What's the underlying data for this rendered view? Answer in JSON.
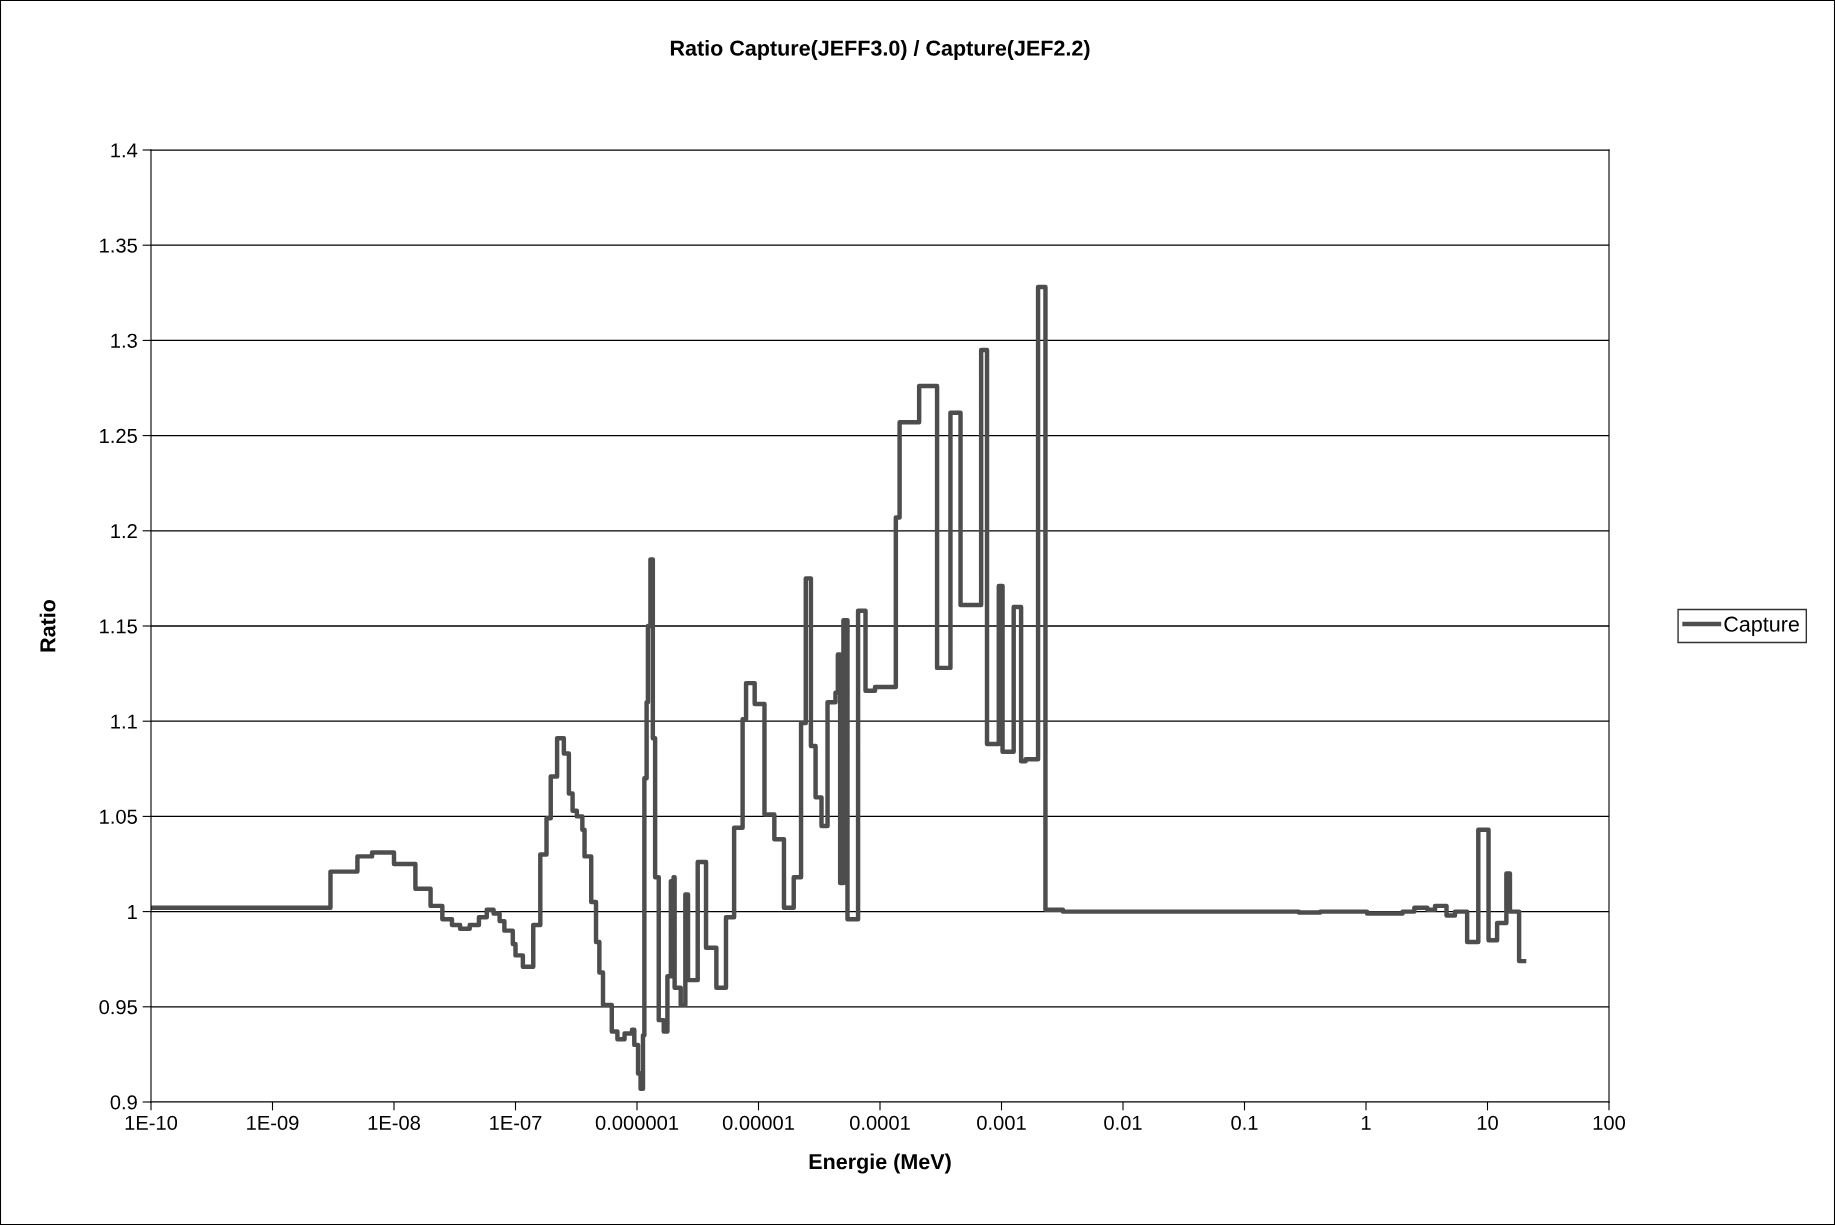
{
  "chart_data": {
    "type": "step",
    "title": "Ratio Capture(JEFF3.0) / Capture(JEF2.2)",
    "xlabel": "Energie (MeV)",
    "ylabel": "Ratio",
    "log": "x",
    "grid": "y",
    "legend": "right",
    "xlim": [
      1e-10,
      100
    ],
    "xticks": [
      {
        "value": 1e-10,
        "label": "1E-10"
      },
      {
        "value": 1e-09,
        "label": "1E-09"
      },
      {
        "value": 1e-08,
        "label": "1E-08"
      },
      {
        "value": 1e-07,
        "label": "1E-07"
      },
      {
        "value": 1e-06,
        "label": "0.000001"
      },
      {
        "value": 1e-05,
        "label": "0.00001"
      },
      {
        "value": 0.0001,
        "label": "0.0001"
      },
      {
        "value": 0.001,
        "label": "0.001"
      },
      {
        "value": 0.01,
        "label": "0.01"
      },
      {
        "value": 0.1,
        "label": "0.1"
      },
      {
        "value": 1,
        "label": "1"
      },
      {
        "value": 10,
        "label": "10"
      },
      {
        "value": 100,
        "label": "100"
      }
    ],
    "ylim": [
      0.9,
      1.4
    ],
    "yticks": [
      0.9,
      0.95,
      1,
      1.05,
      1.1,
      1.15,
      1.2,
      1.25,
      1.3,
      1.35,
      1.4
    ],
    "series": [
      {
        "name": "Capture",
        "color": "#4d4d4d",
        "x": [
          1e-10,
          3e-09,
          5e-09,
          6.6e-09,
          1e-08,
          1.5e-08,
          2e-08,
          2.5e-08,
          3e-08,
          3.5e-08,
          4.2e-08,
          5e-08,
          5.8e-08,
          6.6e-08,
          7.4e-08,
          8.1e-08,
          9.5e-08,
          1e-07,
          1.15e-07,
          1.4e-07,
          1.6e-07,
          1.8e-07,
          1.95e-07,
          2.2e-07,
          2.5e-07,
          2.75e-07,
          2.95e-07,
          3.2e-07,
          3.55e-07,
          3.7e-07,
          4.2e-07,
          4.6e-07,
          4.9e-07,
          5.25e-07,
          6.2e-07,
          6.9e-07,
          7.9e-07,
          9.1e-07,
          9.5e-07,
          1.02e-06,
          1.07e-06,
          1.12e-06,
          1.15e-06,
          1.2e-06,
          1.23e-06,
          1.29e-06,
          1.35e-06,
          1.41e-06,
          1.51e-06,
          1.66e-06,
          1.78e-06,
          1.9e-06,
          2e-06,
          2.04e-06,
          2.29e-06,
          2.5e-06,
          2.63e-06,
          3.16e-06,
          3.7e-06,
          4.5e-06,
          5.4e-06,
          6.3e-06,
          7.4e-06,
          7.9e-06,
          9.3e-06,
          1.12e-05,
          1.35e-05,
          1.62e-05,
          1.95e-05,
          2.24e-05,
          2.45e-05,
          2.7e-05,
          2.95e-05,
          3.3e-05,
          3.7e-05,
          4.3e-05,
          4.5e-05,
          4.7e-05,
          5e-05,
          5.4e-05,
          6.6e-05,
          7.6e-05,
          9.1e-05,
          0.000135,
          0.000145,
          0.00021,
          0.000295,
          0.00038,
          0.00046,
          0.00068,
          0.00076,
          0.00095,
          0.00102,
          0.00126,
          0.00145,
          0.00158,
          0.002,
          0.0023,
          0.0032,
          0.28,
          0.42,
          1.02,
          2.0,
          2.5,
          3.2,
          3.7,
          4.6,
          5.4,
          6.8,
          8.4,
          10.2,
          12,
          14.3,
          15.3,
          18.2,
          20
        ],
        "values": [
          1.002,
          1.021,
          1.029,
          1.031,
          1.025,
          1.012,
          1.003,
          0.996,
          0.993,
          0.991,
          0.993,
          0.997,
          1.001,
          0.999,
          0.995,
          0.99,
          0.983,
          0.977,
          0.971,
          0.993,
          1.03,
          1.049,
          1.071,
          1.091,
          1.083,
          1.062,
          1.053,
          1.05,
          1.043,
          1.029,
          1.005,
          0.984,
          0.968,
          0.951,
          0.937,
          0.933,
          0.936,
          0.938,
          0.93,
          0.915,
          0.907,
          0.935,
          1.07,
          1.11,
          1.15,
          1.185,
          1.091,
          1.018,
          0.943,
          0.937,
          0.966,
          1.016,
          1.018,
          0.96,
          0.951,
          1.009,
          0.964,
          1.026,
          0.981,
          0.96,
          0.997,
          1.044,
          1.101,
          1.12,
          1.109,
          1.051,
          1.038,
          1.002,
          1.018,
          1.099,
          1.175,
          1.087,
          1.06,
          1.045,
          1.11,
          1.115,
          1.135,
          1.015,
          1.153,
          0.996,
          1.158,
          1.116,
          1.118,
          1.207,
          1.257,
          1.276,
          1.128,
          1.262,
          1.161,
          1.295,
          1.088,
          1.171,
          1.084,
          1.16,
          1.079,
          1.08,
          1.328,
          1.001,
          1.0,
          0.9995,
          1.0,
          0.999,
          1.0,
          1.002,
          1.001,
          1.003,
          0.998,
          1.0,
          0.984,
          1.043,
          0.985,
          0.994,
          1.02,
          1.0,
          0.974,
          0.974
        ]
      }
    ]
  }
}
